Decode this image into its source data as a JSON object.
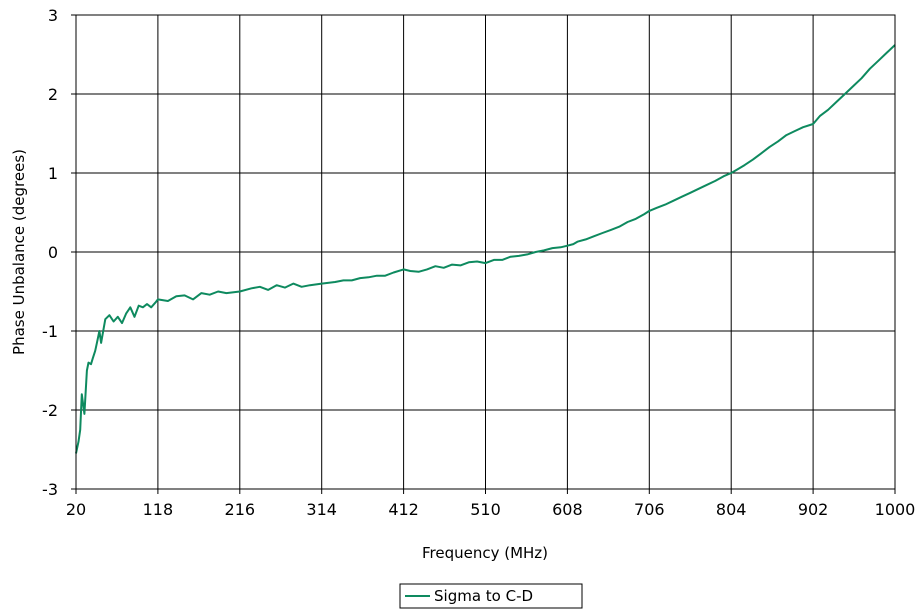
{
  "chart_data": {
    "type": "line",
    "title": "",
    "xlabel": "Frequency (MHz)",
    "ylabel": "Phase Unbalance (degrees)",
    "xlim": [
      20,
      1000
    ],
    "ylim": [
      -3,
      3
    ],
    "x_ticks": [
      20,
      118,
      216,
      314,
      412,
      510,
      608,
      706,
      804,
      902,
      1000
    ],
    "y_ticks": [
      -3,
      -2,
      -1,
      0,
      1,
      2,
      3
    ],
    "grid": true,
    "legend_position": "bottom-center",
    "series": [
      {
        "name": "Sigma to C-D",
        "color": "#0e8a5f",
        "x": [
          20,
          23,
          25,
          27,
          30,
          33,
          35,
          38,
          40,
          43,
          45,
          48,
          50,
          55,
          60,
          65,
          70,
          75,
          80,
          85,
          90,
          95,
          100,
          105,
          110,
          115,
          118,
          130,
          140,
          150,
          160,
          170,
          180,
          190,
          200,
          216,
          230,
          240,
          250,
          260,
          270,
          280,
          290,
          300,
          314,
          330,
          340,
          350,
          360,
          370,
          380,
          390,
          400,
          412,
          420,
          430,
          440,
          450,
          460,
          470,
          480,
          490,
          500,
          510,
          520,
          530,
          540,
          550,
          560,
          570,
          580,
          590,
          600,
          608,
          615,
          620,
          630,
          640,
          650,
          660,
          670,
          680,
          690,
          700,
          706,
          715,
          725,
          735,
          745,
          755,
          765,
          775,
          785,
          795,
          804,
          812,
          820,
          830,
          840,
          850,
          860,
          870,
          880,
          890,
          902,
          910,
          920,
          930,
          940,
          950,
          960,
          970,
          980,
          990,
          1000
        ],
        "values": [
          -2.55,
          -2.4,
          -2.25,
          -1.8,
          -2.05,
          -1.5,
          -1.4,
          -1.42,
          -1.35,
          -1.25,
          -1.15,
          -1.0,
          -1.15,
          -0.85,
          -0.8,
          -0.88,
          -0.82,
          -0.9,
          -0.78,
          -0.7,
          -0.82,
          -0.68,
          -0.7,
          -0.66,
          -0.7,
          -0.64,
          -0.6,
          -0.62,
          -0.56,
          -0.55,
          -0.6,
          -0.52,
          -0.54,
          -0.5,
          -0.52,
          -0.5,
          -0.46,
          -0.44,
          -0.48,
          -0.42,
          -0.45,
          -0.4,
          -0.44,
          -0.42,
          -0.4,
          -0.38,
          -0.36,
          -0.36,
          -0.33,
          -0.32,
          -0.3,
          -0.3,
          -0.26,
          -0.22,
          -0.24,
          -0.25,
          -0.22,
          -0.18,
          -0.2,
          -0.16,
          -0.17,
          -0.13,
          -0.12,
          -0.14,
          -0.1,
          -0.1,
          -0.06,
          -0.05,
          -0.03,
          0.0,
          0.02,
          0.05,
          0.06,
          0.08,
          0.1,
          0.13,
          0.16,
          0.2,
          0.24,
          0.28,
          0.32,
          0.38,
          0.42,
          0.48,
          0.52,
          0.56,
          0.6,
          0.65,
          0.7,
          0.75,
          0.8,
          0.85,
          0.9,
          0.96,
          1.0,
          1.05,
          1.1,
          1.17,
          1.25,
          1.33,
          1.4,
          1.48,
          1.53,
          1.58,
          1.62,
          1.72,
          1.8,
          1.9,
          2.0,
          2.1,
          2.2,
          2.32,
          2.42,
          2.52,
          2.62
        ]
      }
    ]
  }
}
